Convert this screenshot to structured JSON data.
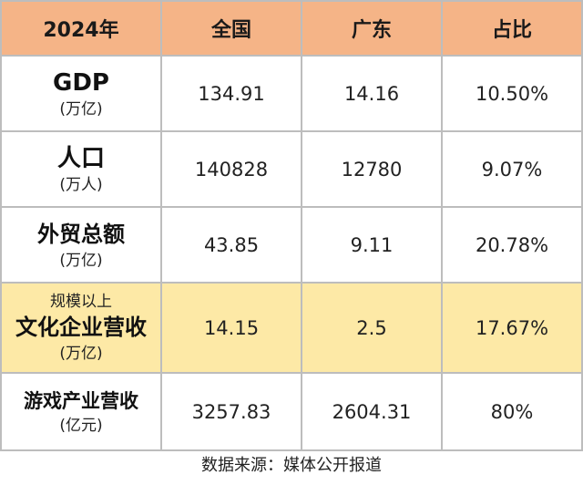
{
  "header": {
    "year": "2024年",
    "col1": "全国",
    "col2": "广东",
    "col3": "占比"
  },
  "rows": [
    {
      "pre": "",
      "label": "GDP",
      "unit": "(万亿)",
      "national": "134.91",
      "guangdong": "14.16",
      "share": "10.50%"
    },
    {
      "pre": "",
      "label": "人口",
      "unit": "(万人)",
      "national": "140828",
      "guangdong": "12780",
      "share": "9.07%"
    },
    {
      "pre": "",
      "label": "外贸总额",
      "unit": "(万亿)",
      "national": "43.85",
      "guangdong": "9.11",
      "share": "20.78%"
    },
    {
      "pre": "规模以上",
      "label": "文化企业营收",
      "unit": "(万亿)",
      "national": "14.15",
      "guangdong": "2.5",
      "share": "17.67%"
    },
    {
      "pre": "",
      "label": "游戏产业营收",
      "unit": "(亿元)",
      "national": "3257.83",
      "guangdong": "2604.31",
      "share": "80%"
    }
  ],
  "source": "数据来源：媒体公开报道",
  "colors": {
    "header_bg": "#f5b487",
    "highlight_bg": "#fde9a6",
    "border": "#bdbdbd"
  }
}
